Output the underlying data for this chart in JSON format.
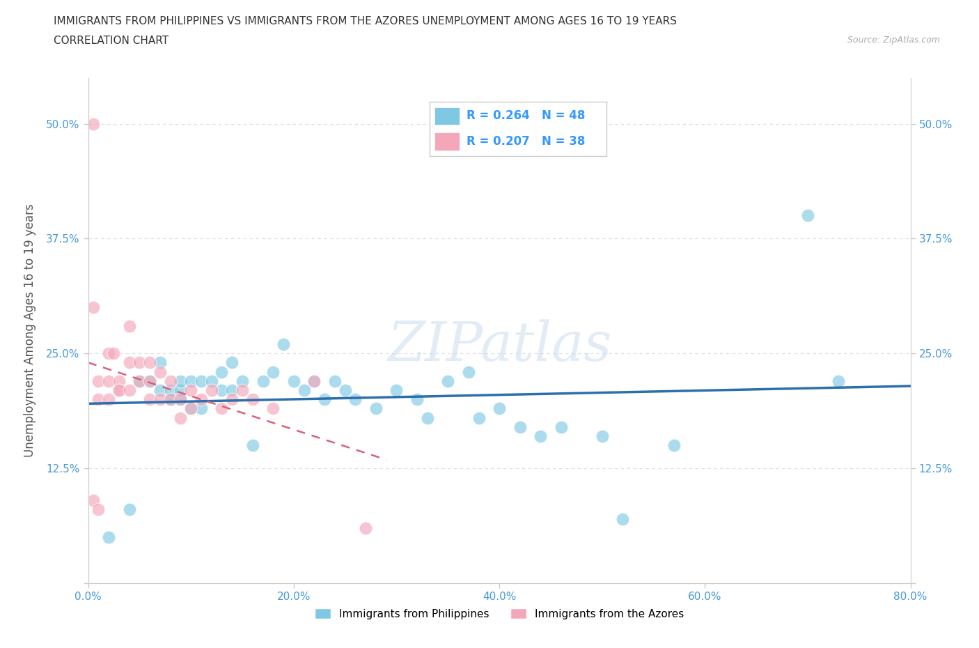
{
  "title_line1": "IMMIGRANTS FROM PHILIPPINES VS IMMIGRANTS FROM THE AZORES UNEMPLOYMENT AMONG AGES 16 TO 19 YEARS",
  "title_line2": "CORRELATION CHART",
  "source_text": "Source: ZipAtlas.com",
  "ylabel": "Unemployment Among Ages 16 to 19 years",
  "xlim": [
    0.0,
    0.8
  ],
  "ylim": [
    0.0,
    0.55
  ],
  "xticks": [
    0.0,
    0.2,
    0.4,
    0.6,
    0.8
  ],
  "xticklabels": [
    "0.0%",
    "20.0%",
    "40.0%",
    "60.0%",
    "80.0%"
  ],
  "yticks": [
    0.0,
    0.125,
    0.25,
    0.375,
    0.5
  ],
  "yticklabels": [
    "",
    "12.5%",
    "25.0%",
    "37.5%",
    "50.0%"
  ],
  "grid_color": "#dddddd",
  "watermark": "ZIPatlas",
  "blue_color": "#7ec8e3",
  "pink_color": "#f4a7b9",
  "blue_line_color": "#2c6fad",
  "pink_line_color": "#d9607a",
  "legend_R1": "R = 0.264",
  "legend_N1": "N = 48",
  "legend_R2": "R = 0.207",
  "legend_N2": "N = 38",
  "label1": "Immigrants from Philippines",
  "label2": "Immigrants from the Azores",
  "philippines_x": [
    0.02,
    0.04,
    0.05,
    0.06,
    0.07,
    0.07,
    0.08,
    0.08,
    0.09,
    0.09,
    0.09,
    0.1,
    0.1,
    0.11,
    0.11,
    0.12,
    0.13,
    0.13,
    0.14,
    0.14,
    0.15,
    0.16,
    0.17,
    0.18,
    0.19,
    0.2,
    0.21,
    0.22,
    0.23,
    0.24,
    0.25,
    0.26,
    0.28,
    0.3,
    0.32,
    0.33,
    0.35,
    0.37,
    0.38,
    0.4,
    0.42,
    0.44,
    0.46,
    0.5,
    0.52,
    0.57,
    0.7,
    0.73
  ],
  "philippines_y": [
    0.05,
    0.08,
    0.22,
    0.22,
    0.21,
    0.24,
    0.2,
    0.21,
    0.2,
    0.21,
    0.22,
    0.19,
    0.22,
    0.22,
    0.19,
    0.22,
    0.21,
    0.23,
    0.21,
    0.24,
    0.22,
    0.15,
    0.22,
    0.23,
    0.26,
    0.22,
    0.21,
    0.22,
    0.2,
    0.22,
    0.21,
    0.2,
    0.19,
    0.21,
    0.2,
    0.18,
    0.22,
    0.23,
    0.18,
    0.19,
    0.17,
    0.16,
    0.17,
    0.16,
    0.07,
    0.15,
    0.4,
    0.22
  ],
  "azores_x": [
    0.005,
    0.005,
    0.005,
    0.01,
    0.01,
    0.01,
    0.02,
    0.02,
    0.02,
    0.025,
    0.03,
    0.03,
    0.03,
    0.04,
    0.04,
    0.04,
    0.05,
    0.05,
    0.06,
    0.06,
    0.06,
    0.07,
    0.07,
    0.08,
    0.08,
    0.09,
    0.09,
    0.1,
    0.1,
    0.11,
    0.12,
    0.13,
    0.14,
    0.15,
    0.16,
    0.18,
    0.22,
    0.27
  ],
  "azores_y": [
    0.5,
    0.3,
    0.09,
    0.22,
    0.2,
    0.08,
    0.25,
    0.22,
    0.2,
    0.25,
    0.22,
    0.21,
    0.21,
    0.28,
    0.24,
    0.21,
    0.24,
    0.22,
    0.24,
    0.22,
    0.2,
    0.23,
    0.2,
    0.22,
    0.2,
    0.2,
    0.18,
    0.19,
    0.21,
    0.2,
    0.21,
    0.19,
    0.2,
    0.21,
    0.2,
    0.19,
    0.22,
    0.06
  ]
}
